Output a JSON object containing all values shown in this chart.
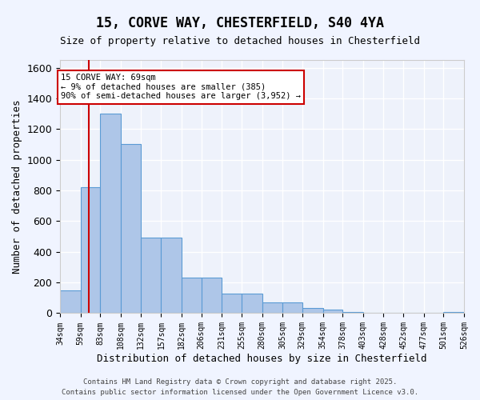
{
  "title_line1": "15, CORVE WAY, CHESTERFIELD, S40 4YA",
  "title_line2": "Size of property relative to detached houses in Chesterfield",
  "xlabel": "Distribution of detached houses by size in Chesterfield",
  "ylabel": "Number of detached properties",
  "bins": [
    34,
    59,
    83,
    108,
    132,
    157,
    182,
    206,
    231,
    255,
    280,
    305,
    329,
    354,
    378,
    403,
    428,
    452,
    477,
    501,
    526
  ],
  "bin_labels": [
    "34sqm",
    "59sqm",
    "83sqm",
    "108sqm",
    "132sqm",
    "157sqm",
    "182sqm",
    "206sqm",
    "231sqm",
    "255sqm",
    "280sqm",
    "305sqm",
    "329sqm",
    "354sqm",
    "378sqm",
    "403sqm",
    "428sqm",
    "452sqm",
    "477sqm",
    "501sqm",
    "526sqm"
  ],
  "values": [
    150,
    820,
    1300,
    1100,
    490,
    490,
    230,
    230,
    130,
    130,
    70,
    70,
    35,
    25,
    10,
    5,
    5,
    0,
    0,
    10
  ],
  "bar_color": "#aec6e8",
  "bar_edge_color": "#5b9bd5",
  "background_color": "#eef2fb",
  "grid_color": "#ffffff",
  "red_line_x": 69,
  "annotation_text": "15 CORVE WAY: 69sqm\n← 9% of detached houses are smaller (385)\n90% of semi-detached houses are larger (3,952) →",
  "annotation_box_color": "#ffffff",
  "annotation_box_edge": "#cc0000",
  "ylim": [
    0,
    1650
  ],
  "footer_line1": "Contains HM Land Registry data © Crown copyright and database right 2025.",
  "footer_line2": "Contains public sector information licensed under the Open Government Licence v3.0."
}
